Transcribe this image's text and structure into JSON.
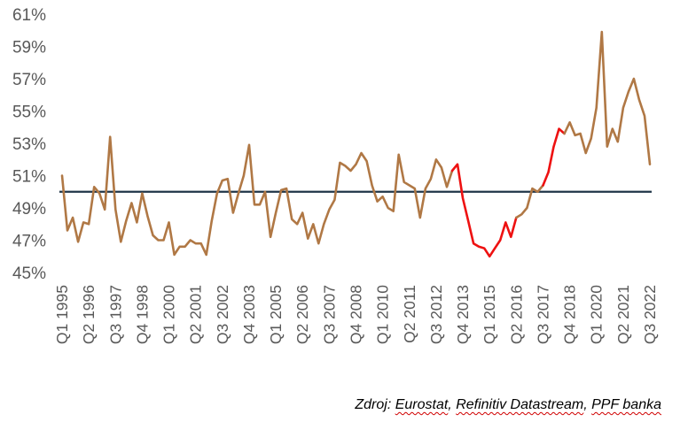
{
  "chart_data": {
    "type": "line",
    "title": "",
    "xlabel": "",
    "ylabel": "",
    "ylim": [
      45,
      61
    ],
    "yticks": [
      "61%",
      "59%",
      "57%",
      "55%",
      "53%",
      "51%",
      "49%",
      "47%",
      "45%"
    ],
    "x_tick_labels": [
      "Q1 1995",
      "Q2 1996",
      "Q3 1997",
      "Q4 1998",
      "Q1 2000",
      "Q2 2001",
      "Q3 2002",
      "Q4 2003",
      "Q1 2005",
      "Q2 2006",
      "Q3 2007",
      "Q4 2008",
      "Q1 2010",
      "Q2 2011",
      "Q3 2012",
      "Q4 2013",
      "Q1 2015",
      "Q2 2016",
      "Q3 2017",
      "Q4 2018",
      "Q1 2020",
      "Q2 2021",
      "Q3 2022"
    ],
    "first_period": "Q1 1995",
    "reference_line": 50,
    "highlight_segments": [
      [
        73,
        85
      ],
      [
        90,
        94
      ]
    ],
    "colors": {
      "line": "#b07845",
      "highlight": "#ee1111",
      "reference": "#1f3548",
      "tick_text": "#595959"
    },
    "values": [
      51.0,
      47.6,
      48.4,
      46.9,
      48.1,
      48.0,
      50.3,
      49.9,
      48.9,
      53.4,
      48.9,
      46.9,
      48.2,
      49.3,
      48.1,
      49.9,
      48.5,
      47.3,
      47.0,
      47.0,
      48.1,
      46.1,
      46.6,
      46.6,
      47.0,
      46.8,
      46.8,
      46.1,
      48.2,
      49.9,
      50.7,
      50.8,
      48.7,
      49.9,
      51.0,
      52.9,
      49.2,
      49.2,
      50.0,
      47.2,
      48.7,
      50.1,
      50.2,
      48.3,
      48.0,
      48.7,
      47.1,
      48.0,
      46.8,
      48.0,
      48.9,
      49.5,
      51.8,
      51.6,
      51.3,
      51.7,
      52.4,
      51.9,
      50.4,
      49.4,
      49.7,
      49.0,
      48.8,
      52.3,
      50.6,
      50.4,
      50.2,
      48.4,
      50.2,
      50.8,
      52.0,
      51.5,
      50.3,
      51.3,
      51.7,
      49.6,
      48.2,
      46.8,
      46.6,
      46.5,
      46.0,
      46.5,
      47.0,
      48.1,
      47.2,
      48.4,
      48.6,
      49.0,
      50.2,
      50.0,
      50.4,
      51.2,
      52.8,
      53.9,
      53.6,
      54.3,
      53.5,
      53.6,
      52.4,
      53.3,
      55.2,
      59.9,
      52.8,
      53.9,
      53.1,
      55.2,
      56.2,
      57.0,
      55.7,
      54.7,
      51.7
    ]
  },
  "source": {
    "prefix": "Zdroj: ",
    "eurostat": "Eurostat",
    "sep1": ", ",
    "refinitiv": "Refinitiv Datastream",
    "sep2": ", ",
    "ppf": "PPF banka"
  }
}
